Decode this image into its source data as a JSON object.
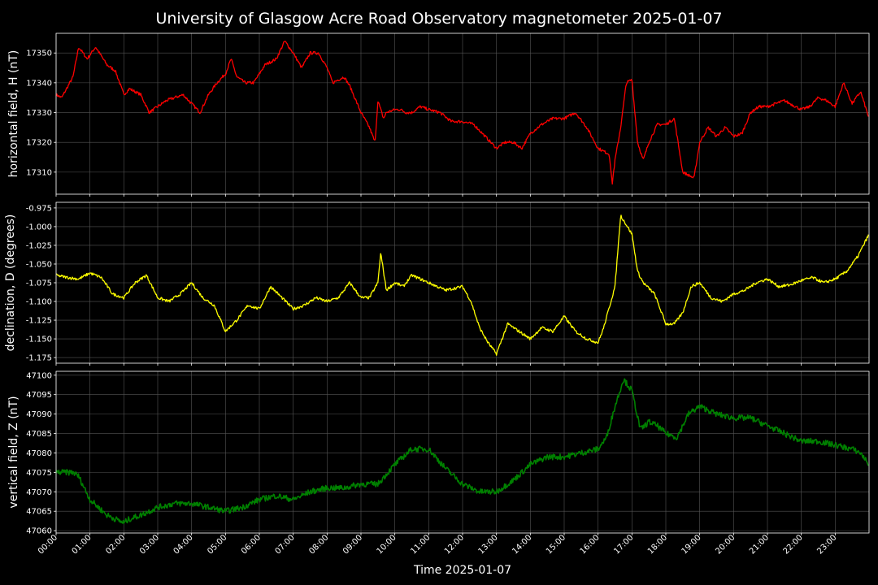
{
  "title": "University of Glasgow Acre Road Observatory magnetometer 2025-01-07",
  "colors": {
    "background": "#000000",
    "grid": "#555555",
    "axis": "#ffffff"
  },
  "chart_data": {
    "type": "line",
    "title": "University of Glasgow Acre Road Observatory magnetometer 2025-01-07",
    "xlabel": "Time 2025-01-07",
    "xlim": [
      "00:00",
      "24:00"
    ],
    "x_ticks": [
      "00:00",
      "01:00",
      "02:00",
      "03:00",
      "04:00",
      "05:00",
      "06:00",
      "07:00",
      "08:00",
      "09:00",
      "10:00",
      "11:00",
      "12:00",
      "13:00",
      "14:00",
      "15:00",
      "16:00",
      "17:00",
      "18:00",
      "19:00",
      "20:00",
      "21:00",
      "22:00",
      "23:00"
    ],
    "grid": true,
    "panels": [
      {
        "name": "H",
        "ylabel": "horizontal field, H (nT)",
        "color": "#ff0000",
        "ylim": [
          17302.6,
          17356.6
        ],
        "y_ticks": [
          "17310",
          "17320",
          "17330",
          "17340",
          "17350"
        ],
        "y_tick_values": [
          17310,
          17320,
          17330,
          17340,
          17350
        ],
        "x": [
          "00:00",
          "00:10",
          "00:30",
          "00:40",
          "00:55",
          "01:10",
          "01:30",
          "01:45",
          "02:00",
          "02:10",
          "02:30",
          "02:45",
          "03:00",
          "03:15",
          "03:30",
          "03:45",
          "04:00",
          "04:15",
          "04:30",
          "04:45",
          "05:00",
          "05:10",
          "05:20",
          "05:35",
          "05:50",
          "06:10",
          "06:30",
          "06:45",
          "07:00",
          "07:15",
          "07:30",
          "07:45",
          "08:00",
          "08:10",
          "08:30",
          "08:40",
          "09:00",
          "09:15",
          "09:25",
          "09:30",
          "09:40",
          "09:45",
          "10:00",
          "10:10",
          "10:20",
          "10:30",
          "10:45",
          "11:00",
          "11:20",
          "11:40",
          "12:00",
          "12:20",
          "12:40",
          "13:00",
          "13:15",
          "13:30",
          "13:45",
          "14:00",
          "14:20",
          "14:40",
          "15:00",
          "15:20",
          "15:40",
          "16:00",
          "16:20",
          "16:25",
          "16:30",
          "16:40",
          "16:50",
          "17:00",
          "17:10",
          "17:20",
          "17:30",
          "17:45",
          "18:00",
          "18:15",
          "18:30",
          "18:50",
          "19:00",
          "19:15",
          "19:30",
          "19:45",
          "20:00",
          "20:15",
          "20:30",
          "20:45",
          "21:00",
          "21:30",
          "22:00",
          "22:15",
          "22:30",
          "22:45",
          "23:00",
          "23:15",
          "23:30",
          "23:45",
          "24:00"
        ],
        "values": [
          17336,
          17335,
          17342,
          17352,
          17348,
          17352,
          17346,
          17344,
          17336,
          17338,
          17336,
          17330,
          17332,
          17334,
          17335,
          17336,
          17333,
          17330,
          17336,
          17340,
          17343,
          17348,
          17342,
          17340,
          17340,
          17346,
          17348,
          17354,
          17350,
          17345,
          17350,
          17350,
          17345,
          17340,
          17342,
          17339,
          17330,
          17325,
          17320,
          17334,
          17328,
          17330,
          17331,
          17331,
          17330,
          17330,
          17332,
          17331,
          17330,
          17327,
          17327,
          17326,
          17322,
          17318,
          17320,
          17320,
          17318,
          17323,
          17326,
          17328,
          17328,
          17330,
          17325,
          17318,
          17316,
          17306,
          17314,
          17325,
          17340,
          17341,
          17320,
          17314,
          17320,
          17326,
          17326,
          17328,
          17310,
          17308,
          17320,
          17325,
          17322,
          17325,
          17322,
          17323,
          17330,
          17332,
          17332,
          17334,
          17331,
          17332,
          17335,
          17334,
          17332,
          17340,
          17333,
          17337,
          17328
        ]
      },
      {
        "name": "D",
        "ylabel": "declination, D (degrees)",
        "color": "#ffff00",
        "ylim": [
          -1.1825,
          -0.9675
        ],
        "y_ticks": [
          "-1.175",
          "-1.150",
          "-1.125",
          "-1.100",
          "-1.075",
          "-1.050",
          "-1.025",
          "-1.000",
          "-0.975"
        ],
        "y_tick_values": [
          -1.175,
          -1.15,
          -1.125,
          -1.1,
          -1.075,
          -1.05,
          -1.025,
          -1.0,
          -0.975
        ],
        "x": [
          "00:00",
          "00:20",
          "00:40",
          "01:00",
          "01:20",
          "01:40",
          "02:00",
          "02:20",
          "02:40",
          "03:00",
          "03:20",
          "03:40",
          "04:00",
          "04:20",
          "04:40",
          "05:00",
          "05:20",
          "05:40",
          "06:00",
          "06:20",
          "06:40",
          "07:00",
          "07:20",
          "07:40",
          "08:00",
          "08:20",
          "08:40",
          "09:00",
          "09:15",
          "09:30",
          "09:35",
          "09:45",
          "10:00",
          "10:15",
          "10:30",
          "11:00",
          "11:30",
          "12:00",
          "12:15",
          "12:30",
          "12:45",
          "13:00",
          "13:20",
          "13:40",
          "14:00",
          "14:20",
          "14:40",
          "15:00",
          "15:20",
          "15:40",
          "16:00",
          "16:10",
          "16:30",
          "16:40",
          "17:00",
          "17:10",
          "17:20",
          "17:40",
          "18:00",
          "18:15",
          "18:30",
          "18:45",
          "19:00",
          "19:20",
          "19:40",
          "20:00",
          "20:20",
          "20:40",
          "21:00",
          "21:20",
          "21:40",
          "22:00",
          "22:20",
          "22:40",
          "23:00",
          "23:20",
          "23:40",
          "24:00"
        ],
        "values": [
          -1.065,
          -1.068,
          -1.07,
          -1.062,
          -1.068,
          -1.09,
          -1.095,
          -1.075,
          -1.065,
          -1.095,
          -1.1,
          -1.09,
          -1.075,
          -1.095,
          -1.105,
          -1.14,
          -1.125,
          -1.105,
          -1.11,
          -1.08,
          -1.095,
          -1.11,
          -1.105,
          -1.095,
          -1.1,
          -1.095,
          -1.075,
          -1.095,
          -1.095,
          -1.075,
          -1.035,
          -1.085,
          -1.075,
          -1.08,
          -1.065,
          -1.075,
          -1.085,
          -1.08,
          -1.1,
          -1.135,
          -1.155,
          -1.17,
          -1.13,
          -1.14,
          -1.15,
          -1.135,
          -1.14,
          -1.12,
          -1.14,
          -1.15,
          -1.155,
          -1.135,
          -1.08,
          -0.985,
          -1.01,
          -1.06,
          -1.075,
          -1.09,
          -1.13,
          -1.13,
          -1.115,
          -1.08,
          -1.075,
          -1.095,
          -1.1,
          -1.09,
          -1.085,
          -1.075,
          -1.07,
          -1.08,
          -1.078,
          -1.072,
          -1.068,
          -1.075,
          -1.07,
          -1.06,
          -1.04,
          -1.01
        ]
      },
      {
        "name": "Z",
        "ylabel": "vertical field, Z (nT)",
        "color": "#008000",
        "ylim": [
          47059.4,
          47101.0
        ],
        "y_ticks": [
          "47060",
          "47065",
          "47070",
          "47075",
          "47080",
          "47085",
          "47090",
          "47095",
          "47100"
        ],
        "y_tick_values": [
          47060,
          47065,
          47070,
          47075,
          47080,
          47085,
          47090,
          47095,
          47100
        ],
        "x": [
          "00:00",
          "00:30",
          "00:40",
          "01:00",
          "01:30",
          "02:00",
          "02:10",
          "02:30",
          "03:00",
          "03:30",
          "04:00",
          "04:30",
          "05:00",
          "05:30",
          "06:00",
          "06:30",
          "07:00",
          "07:30",
          "08:00",
          "08:30",
          "09:00",
          "09:30",
          "10:00",
          "10:30",
          "11:00",
          "11:30",
          "12:00",
          "12:30",
          "13:00",
          "13:30",
          "14:00",
          "14:30",
          "15:00",
          "15:30",
          "16:00",
          "16:15",
          "16:30",
          "16:45",
          "17:00",
          "17:15",
          "17:30",
          "17:45",
          "18:00",
          "18:20",
          "18:40",
          "19:00",
          "19:30",
          "20:00",
          "20:30",
          "21:00",
          "21:30",
          "22:00",
          "22:30",
          "23:00",
          "23:30",
          "23:45",
          "24:00"
        ],
        "values": [
          47075,
          47075,
          47074,
          47068,
          47064,
          47062,
          47063,
          47064,
          47066,
          47067,
          47067,
          47066,
          47065,
          47066,
          47068,
          47069,
          47068,
          47070,
          47071,
          47071,
          47072,
          47072,
          47077,
          47081,
          47081,
          47076,
          47072,
          47070,
          47070,
          47073,
          47077,
          47079,
          47079,
          47080,
          47081,
          47084,
          47092,
          47099,
          47096,
          47086,
          47088,
          47087,
          47085,
          47084,
          47090,
          47092,
          47090,
          47089,
          47089,
          47087,
          47085,
          47083,
          47083,
          47082,
          47081,
          47080,
          47077
        ]
      }
    ]
  }
}
